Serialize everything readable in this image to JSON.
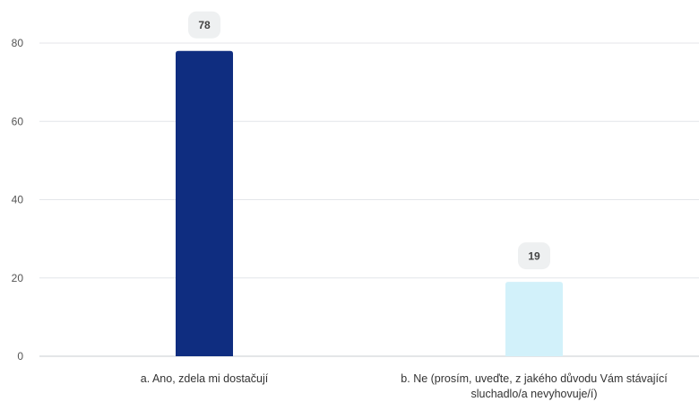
{
  "chart_data": {
    "type": "bar",
    "title": "",
    "xlabel": "",
    "ylabel": "",
    "ylim": [
      0,
      80
    ],
    "yticks": [
      0,
      20,
      40,
      60,
      80
    ],
    "grid": true,
    "legend": "none",
    "categories": [
      [
        "a. Ano, zdela mi dostačují"
      ],
      [
        "b. Ne (prosím, uveďte, z jakého důvodu Vám stávající",
        "sluchadlo/a nevyhovuje/í)"
      ]
    ],
    "values": [
      78,
      19
    ],
    "data_labels": [
      "78",
      "19"
    ],
    "colors": [
      "#0f2d80",
      "#d2f1fa"
    ],
    "label_bg_color": "#eef0f1",
    "gridline_color": "#e4e6ea",
    "axis_color": "#c8ccd2"
  }
}
